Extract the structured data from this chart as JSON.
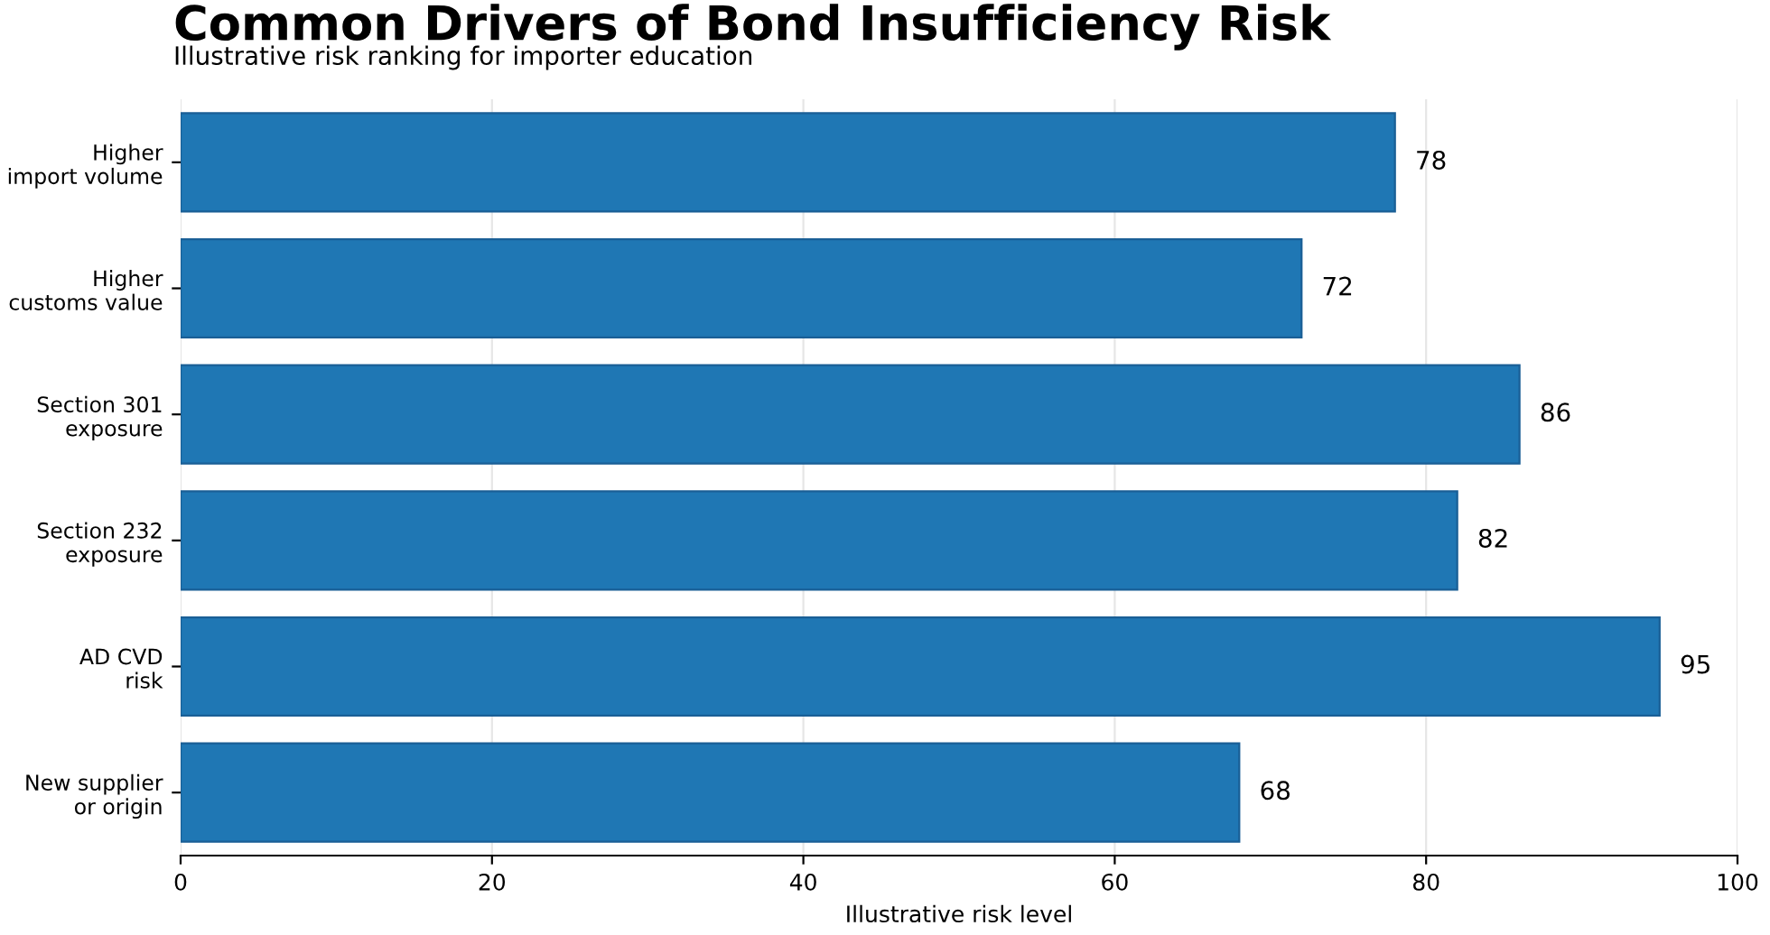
{
  "chart_data": {
    "type": "bar",
    "orientation": "horizontal",
    "title": "Common Drivers of Bond Insufficiency Risk",
    "subtitle": "Illustrative risk ranking for importer education",
    "xlabel": "Illustrative risk level",
    "categories": [
      "Higher\nimport volume",
      "Higher\ncustoms value",
      "Section 301\nexposure",
      "Section 232\nexposure",
      "AD CVD\nrisk",
      "New supplier\nor origin"
    ],
    "values": [
      78,
      72,
      86,
      82,
      95,
      68
    ],
    "color": "#1f77b4",
    "xlim": [
      0,
      100
    ],
    "xticks": [
      0,
      20,
      40,
      60,
      80,
      100
    ],
    "grid": "x",
    "data_labels": true
  }
}
